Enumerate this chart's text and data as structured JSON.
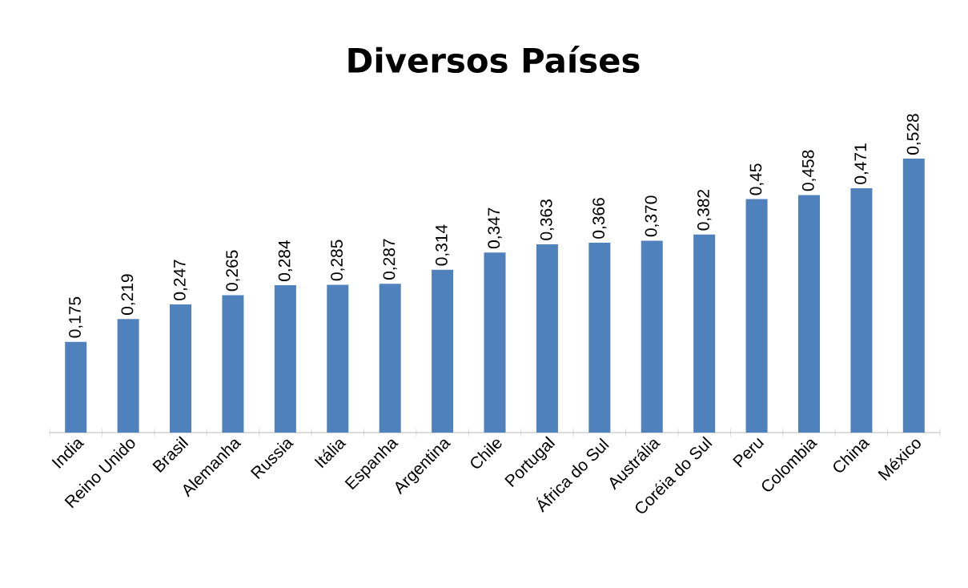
{
  "chart_data": {
    "type": "bar",
    "title": "Diversos Países",
    "color": "#4f81bd",
    "categories": [
      "India",
      "Reino Unido",
      "Brasil",
      "Alemanha",
      "Russia",
      "Itália",
      "Espanha",
      "Argentina",
      "Chile",
      "Portugal",
      "África do Sul",
      "Austrália",
      "Coréia do Sul",
      "Peru",
      "Colombia",
      "China",
      "México"
    ],
    "values": [
      0.175,
      0.219,
      0.247,
      0.265,
      0.284,
      0.285,
      0.287,
      0.314,
      0.347,
      0.363,
      0.366,
      0.37,
      0.382,
      0.45,
      0.458,
      0.471,
      0.528
    ],
    "value_labels": [
      "0,175",
      "0,219",
      "0,247",
      "0,265",
      "0,284",
      "0,285",
      "0,287",
      "0,314",
      "0,347",
      "0,363",
      "0,366",
      "0,370",
      "0,382",
      "0,45",
      "0,458",
      "0,471",
      "0,528"
    ]
  }
}
